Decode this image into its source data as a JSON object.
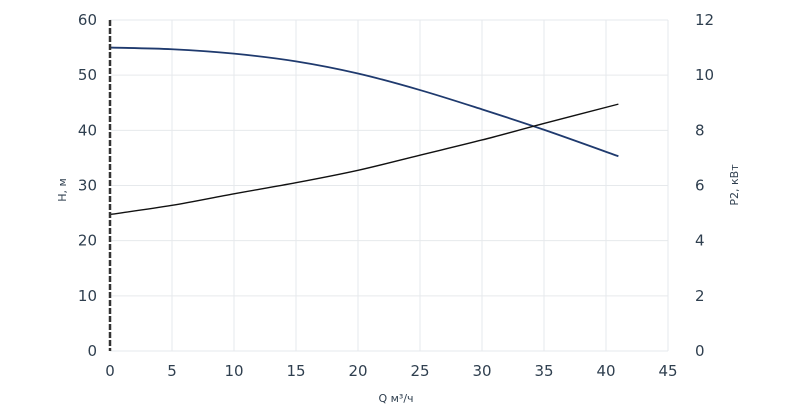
{
  "chart_data": {
    "type": "line",
    "xlabel": "Q м³/ч",
    "ylabel_left": "H, м",
    "ylabel_right": "P2, кВт",
    "xlim": [
      0,
      45
    ],
    "ylim_left": [
      0,
      60
    ],
    "ylim_right": [
      0,
      12
    ],
    "x_ticks": [
      "0",
      "5",
      "10",
      "15",
      "20",
      "25",
      "30",
      "35",
      "40",
      "45"
    ],
    "y_left_ticks": [
      "0",
      "10",
      "20",
      "30",
      "40",
      "50",
      "60"
    ],
    "y_right_ticks": [
      "0",
      "2",
      "4",
      "6",
      "8",
      "10",
      "12"
    ],
    "grid": true,
    "series": [
      {
        "axis": "left",
        "color": "#1f3a6e",
        "x": [
          0,
          5,
          10,
          15,
          20,
          25,
          30,
          35,
          41
        ],
        "y": [
          55.0,
          54.7,
          53.9,
          52.5,
          50.3,
          47.3,
          43.8,
          40.1,
          35.3
        ]
      },
      {
        "axis": "right",
        "color": "#111111",
        "x": [
          0,
          5,
          10,
          15,
          20,
          25,
          30,
          35,
          41
        ],
        "y": [
          4.95,
          5.28,
          5.7,
          6.1,
          6.55,
          7.1,
          7.65,
          8.25,
          8.95
        ]
      }
    ]
  }
}
